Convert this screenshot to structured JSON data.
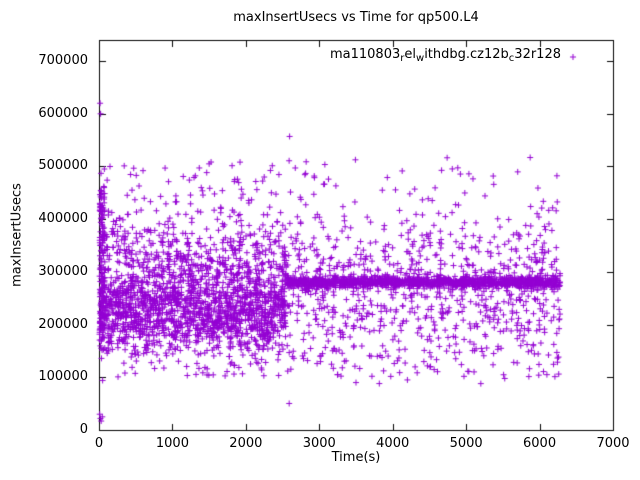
{
  "title": "maxInsertUsecs vs Time for qp500.L4",
  "axes": {
    "x": {
      "label": "Time(s)",
      "min": 0,
      "max": 7000,
      "ticks": [
        0,
        1000,
        2000,
        3000,
        4000,
        5000,
        6000,
        7000
      ]
    },
    "y": {
      "label": "maxInsertUsecs",
      "min": 0,
      "max": 740000,
      "ticks": [
        0,
        100000,
        200000,
        300000,
        400000,
        500000,
        600000,
        700000
      ]
    }
  },
  "legend": {
    "marker": "+",
    "parts": [
      {
        "text": "ma110803"
      },
      {
        "text": "r",
        "sub": true
      },
      {
        "text": "el"
      },
      {
        "text": "w",
        "sub": true
      },
      {
        "text": "ithdbg.cz12b"
      },
      {
        "text": "c",
        "sub": true
      },
      {
        "text": "32r128"
      }
    ]
  },
  "colors": {
    "points": "#9400d3",
    "axis": "#000000",
    "background": "#ffffff"
  },
  "chart_data": {
    "type": "scatter",
    "title": "maxInsertUsecs vs Time for qp500.L4",
    "xlabel": "Time(s)",
    "ylabel": "maxInsertUsecs",
    "xlim": [
      0,
      7000
    ],
    "ylim": [
      0,
      740000
    ],
    "legend_position": "top-right-inside",
    "grid": false,
    "marker": "plus",
    "series": [
      {
        "name": "ma110803_rel_withdbg.cz12b_c32r128",
        "color": "#9400d3",
        "marker": "plus"
      }
    ],
    "seed": 42,
    "summary": "Dense cloud of maxInsertUsecs samples 150k-420k for t=0-2550s, then a tight horizontal band near 280k with wider scatter 100k-520k for t=2550-6280s; isolated outliers up to 620k near t=0 and 557k near t=2600.",
    "clusters": [
      {
        "name": "phase1-core",
        "x": [
          10,
          2550
        ],
        "dist": "normal",
        "mean": 225000,
        "sd": 40000,
        "count": 1500
      },
      {
        "name": "phase1-upper",
        "x": [
          10,
          2550
        ],
        "dist": "normal",
        "mean": 325000,
        "sd": 45000,
        "count": 500
      },
      {
        "name": "phase1-high",
        "x": [
          10,
          2550
        ],
        "dist": "uniform",
        "y": [
          400000,
          510000
        ],
        "count": 60
      },
      {
        "name": "left-stripe",
        "x": [
          5,
          80
        ],
        "dist": "uniform",
        "y": [
          150000,
          460000
        ],
        "count": 150
      },
      {
        "name": "phase2-line",
        "x": [
          2560,
          6280
        ],
        "dist": "normal",
        "mean": 280000,
        "sd": 5000,
        "count": 1200
      },
      {
        "name": "phase2-cloud",
        "x": [
          2560,
          6280
        ],
        "dist": "normal",
        "mean": 270000,
        "sd": 70000,
        "count": 800
      },
      {
        "name": "phase2-high",
        "x": [
          2560,
          6280
        ],
        "dist": "uniform",
        "y": [
          400000,
          520000
        ],
        "count": 50
      },
      {
        "name": "low-band",
        "x": [
          0,
          6280
        ],
        "dist": "uniform",
        "y": [
          100000,
          160000
        ],
        "count": 120
      }
    ],
    "outliers": [
      [
        15,
        620000
      ],
      [
        22,
        600000
      ],
      [
        2596,
        557000
      ],
      [
        28,
        487000
      ],
      [
        35,
        452000
      ],
      [
        150,
        500000
      ],
      [
        900,
        497000
      ],
      [
        1500,
        505000
      ],
      [
        2250,
        480000
      ],
      [
        10,
        30000
      ],
      [
        20,
        22000
      ],
      [
        30,
        17000
      ],
      [
        45,
        25000
      ],
      [
        3500,
        90000
      ],
      [
        4200,
        95000
      ],
      [
        5200,
        88000
      ],
      [
        6100,
        105000
      ]
    ]
  }
}
